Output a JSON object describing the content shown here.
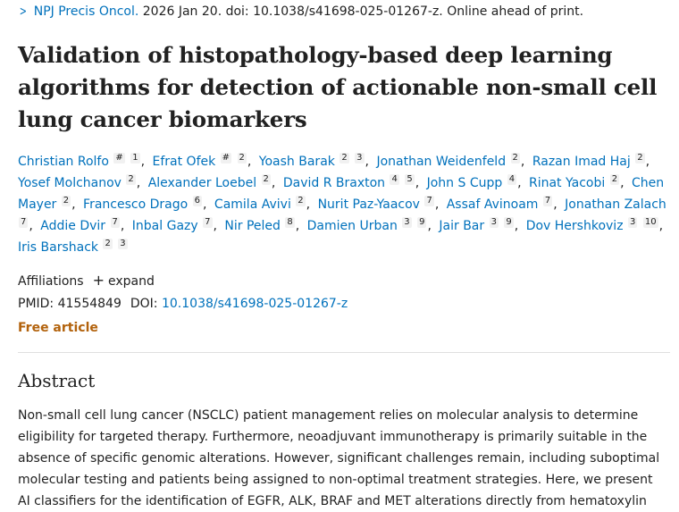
{
  "citation": {
    "journal": "NPJ Precis Oncol.",
    "rest": " 2026 Jan 20. doi: 10.1038/s41698-025-01267-z. Online ahead of print."
  },
  "title": "Validation of histopathology-based deep learning algorithms for detection of actionable non-small cell lung cancer biomarkers",
  "authors": [
    {
      "name": "Christian Rolfo",
      "sups": [
        "#",
        "1"
      ]
    },
    {
      "name": "Efrat Ofek",
      "sups": [
        "#",
        "2"
      ]
    },
    {
      "name": "Yoash Barak",
      "sups": [
        "2",
        "3"
      ]
    },
    {
      "name": "Jonathan Weidenfeld",
      "sups": [
        "2"
      ]
    },
    {
      "name": "Razan Imad Haj",
      "sups": [
        "2"
      ]
    },
    {
      "name": "Yosef Molchanov",
      "sups": [
        "2"
      ]
    },
    {
      "name": "Alexander Loebel",
      "sups": [
        "2"
      ]
    },
    {
      "name": "David R Braxton",
      "sups": [
        "4",
        "5"
      ]
    },
    {
      "name": "John S Cupp",
      "sups": [
        "4"
      ]
    },
    {
      "name": "Rinat Yacobi",
      "sups": [
        "2"
      ]
    },
    {
      "name": "Chen Mayer",
      "sups": [
        "2"
      ]
    },
    {
      "name": "Francesco Drago",
      "sups": [
        "6"
      ]
    },
    {
      "name": "Camila Avivi",
      "sups": [
        "2"
      ]
    },
    {
      "name": "Nurit Paz-Yaacov",
      "sups": [
        "7"
      ]
    },
    {
      "name": "Assaf Avinoam",
      "sups": [
        "7"
      ]
    },
    {
      "name": "Jonathan Zalach",
      "sups": [
        "7"
      ]
    },
    {
      "name": "Addie Dvir",
      "sups": [
        "7"
      ]
    },
    {
      "name": "Inbal Gazy",
      "sups": [
        "7"
      ]
    },
    {
      "name": "Nir Peled",
      "sups": [
        "8"
      ]
    },
    {
      "name": "Damien Urban",
      "sups": [
        "3",
        "9"
      ]
    },
    {
      "name": "Jair Bar",
      "sups": [
        "3",
        "9"
      ]
    },
    {
      "name": "Dov Hershkoviz",
      "sups": [
        "3",
        "10"
      ]
    },
    {
      "name": "Iris Barshack",
      "sups": [
        "2",
        "3"
      ]
    }
  ],
  "affiliations": {
    "label": "Affiliations",
    "expand": "expand"
  },
  "ids": {
    "pmid_label": "PMID:",
    "pmid": "41554849",
    "doi_label": "DOI:",
    "doi": "10.1038/s41698-025-01267-z"
  },
  "free_article": "Free article",
  "abstract": {
    "heading": "Abstract",
    "text": "Non-small cell lung cancer (NSCLC) patient management relies on molecular analysis to determine eligibility for targeted therapy. Furthermore, neoadjuvant immunotherapy is primarily suitable in the absence of specific genomic alterations. However, significant challenges remain, including suboptimal molecular testing and patients being assigned to non-optimal treatment strategies. Here, we present AI classifiers for the identification of EGFR, ALK, BRAF and MET alterations directly from hematoxylin"
  }
}
